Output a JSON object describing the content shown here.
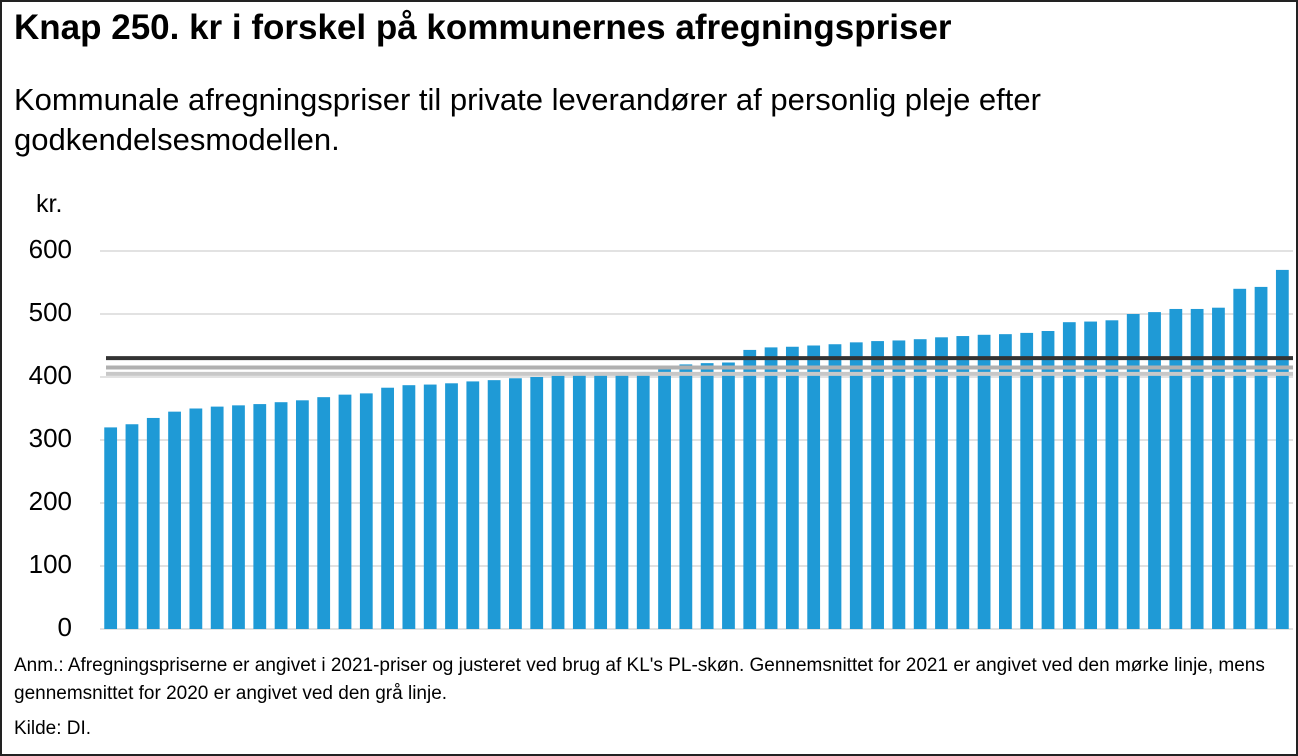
{
  "chart_data": {
    "type": "bar",
    "title": "Knap 250. kr i forskel på kommunernes afregningspriser",
    "subtitle": "Kommunale afregningspriser til private leverandører af personlig pleje efter godkendelsesmodellen.",
    "y_label": "kr.",
    "values": [
      320,
      325,
      335,
      345,
      350,
      353,
      355,
      357,
      360,
      363,
      368,
      372,
      374,
      383,
      387,
      388,
      390,
      393,
      395,
      398,
      400,
      402,
      403,
      405,
      407,
      408,
      418,
      420,
      422,
      423,
      443,
      447,
      448,
      450,
      452,
      455,
      457,
      458,
      460,
      463,
      465,
      467,
      468,
      470,
      473,
      487,
      488,
      490,
      500,
      503,
      508,
      508,
      510,
      540,
      543,
      570
    ],
    "color": "#1f9ad6",
    "reference_lines": [
      {
        "value": 430,
        "color": "#333333"
      },
      {
        "value": 415,
        "color": "#b0b0b0"
      },
      {
        "value": 405,
        "color": "#c8c8c8"
      }
    ],
    "ylim": [
      0,
      600
    ],
    "yticks": [
      0,
      100,
      200,
      300,
      400,
      500,
      600
    ],
    "grid": true,
    "note": "Anm.: Afregningspriserne er angivet i 2021-priser og justeret ved brug af KL's PL-skøn. Gennemsnittet for 2021 er angivet ved den mørke linje, mens gennemsnittet for 2020 er angivet ved den grå linje.",
    "source": "Kilde: DI."
  }
}
